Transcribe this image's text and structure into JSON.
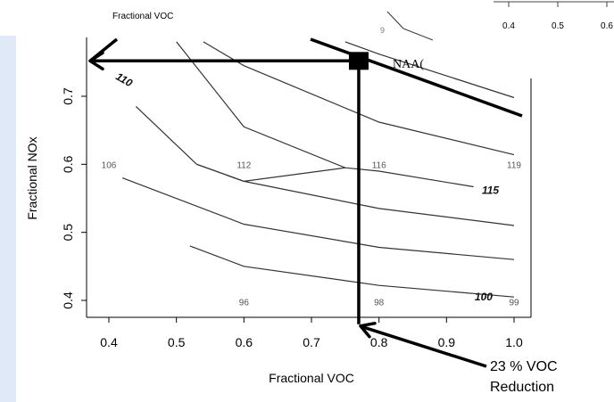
{
  "background_fragments": {
    "top_left_label": "Fractional VOC",
    "top_right_ticks": [
      "0.4",
      "0.5",
      "0.6"
    ],
    "clipped_label_digit": "9"
  },
  "chart_data": {
    "type": "contour",
    "title": "",
    "xlabel": "Fractional VOC",
    "ylabel": "Fractional NOx",
    "xlim": [
      0.37,
      1.03
    ],
    "ylim": [
      0.365,
      0.78
    ],
    "x_ticks": [
      0.4,
      0.5,
      0.6,
      0.7,
      0.8,
      0.9,
      1.0
    ],
    "x_tick_labels": [
      "0.4",
      "0.5",
      "0.6",
      "0.7",
      "0.8",
      "0.9",
      "1.0"
    ],
    "y_ticks": [
      0.4,
      0.5,
      0.6,
      0.7
    ],
    "y_tick_labels": [
      "0.4",
      "0.5",
      "0.6",
      "0.7"
    ],
    "grid": false,
    "contours": [
      {
        "level": "100",
        "points": [
          [
            0.52,
            0.48
          ],
          [
            0.6,
            0.45
          ],
          [
            0.8,
            0.422
          ],
          [
            1.0,
            0.405
          ]
        ]
      },
      {
        "level": "",
        "points": [
          [
            0.42,
            0.58
          ],
          [
            0.6,
            0.512
          ],
          [
            0.8,
            0.478
          ],
          [
            1.0,
            0.46
          ]
        ]
      },
      {
        "level": "",
        "points": [
          [
            0.53,
            0.6
          ],
          [
            0.6,
            0.575
          ],
          [
            0.8,
            0.535
          ],
          [
            1.0,
            0.51
          ]
        ]
      },
      {
        "level": "115",
        "points": [
          [
            0.53,
            0.6
          ],
          [
            0.6,
            0.575
          ],
          [
            0.75,
            0.595
          ],
          [
            0.8,
            0.59
          ],
          [
            0.94,
            0.567
          ]
        ]
      },
      {
        "level": "110",
        "points": [
          [
            0.44,
            0.685
          ],
          [
            0.53,
            0.6
          ]
        ]
      },
      {
        "level": "",
        "points": [
          [
            0.5,
            0.78
          ],
          [
            0.6,
            0.655
          ],
          [
            0.75,
            0.595
          ]
        ]
      },
      {
        "level": "",
        "points": [
          [
            0.54,
            0.78
          ],
          [
            0.6,
            0.745
          ],
          [
            0.8,
            0.662
          ],
          [
            1.0,
            0.614
          ]
        ]
      },
      {
        "level": "",
        "points": [
          [
            0.75,
            0.78
          ],
          [
            0.8,
            0.762
          ],
          [
            1.0,
            0.698
          ]
        ]
      }
    ],
    "contour_labels": [
      {
        "text": "110",
        "x": 0.42,
        "y": 0.725,
        "style": "italic-bold",
        "rotate": 30
      },
      {
        "text": "115",
        "x": 0.965,
        "y": 0.562,
        "style": "italic-bold",
        "rotate": 0
      },
      {
        "text": "100",
        "x": 0.955,
        "y": 0.405,
        "style": "italic-bold",
        "rotate": 0
      },
      {
        "text": "106",
        "x": 0.4,
        "y": 0.6,
        "style": "plain",
        "rotate": 0
      },
      {
        "text": "112",
        "x": 0.6,
        "y": 0.6,
        "style": "plain",
        "rotate": 0
      },
      {
        "text": "116",
        "x": 0.8,
        "y": 0.6,
        "style": "plain",
        "rotate": 0
      },
      {
        "text": "119",
        "x": 1.0,
        "y": 0.6,
        "style": "plain",
        "rotate": 0
      },
      {
        "text": "96",
        "x": 0.6,
        "y": 0.398,
        "style": "plain",
        "rotate": 0
      },
      {
        "text": "98",
        "x": 0.8,
        "y": 0.398,
        "style": "plain",
        "rotate": 0
      },
      {
        "text": "99",
        "x": 1.0,
        "y": 0.398,
        "style": "plain",
        "rotate": 0
      }
    ],
    "annotations": {
      "target_point": {
        "x": 0.77,
        "y": 0.752,
        "label": "NAA("
      },
      "vertical_line_x": 0.77,
      "horizontal_line_y": 0.752,
      "callout": {
        "text_line1": "23 % VOC",
        "text_line2": "Reduction",
        "points_to": {
          "x": 0.77,
          "y": 0.365
        }
      }
    }
  }
}
